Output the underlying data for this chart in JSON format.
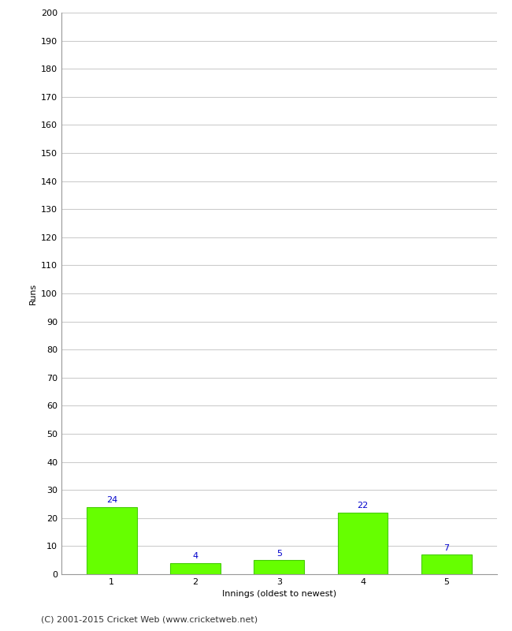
{
  "categories": [
    "1",
    "2",
    "3",
    "4",
    "5"
  ],
  "values": [
    24,
    4,
    5,
    22,
    7
  ],
  "bar_color": "#66ff00",
  "bar_edge_color": "#44cc00",
  "ylabel": "Runs",
  "xlabel": "Innings (oldest to newest)",
  "ylim": [
    0,
    200
  ],
  "yticks": [
    0,
    10,
    20,
    30,
    40,
    50,
    60,
    70,
    80,
    90,
    100,
    110,
    120,
    130,
    140,
    150,
    160,
    170,
    180,
    190,
    200
  ],
  "label_color": "#0000cc",
  "label_fontsize": 8,
  "axis_label_fontsize": 8,
  "tick_fontsize": 8,
  "footer_text": "(C) 2001-2015 Cricket Web (www.cricketweb.net)",
  "footer_fontsize": 8,
  "background_color": "#ffffff",
  "grid_color": "#cccccc",
  "bar_width": 0.6,
  "spine_color": "#999999"
}
